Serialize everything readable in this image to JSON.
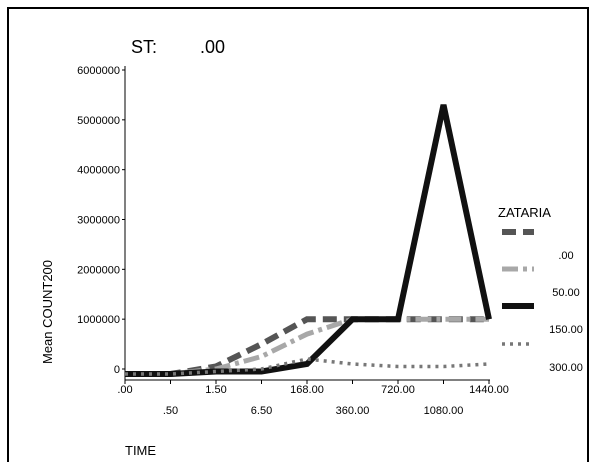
{
  "chart_data": {
    "type": "line",
    "title_label": "ST:",
    "title_value": ".00",
    "xlabel": "TIME",
    "ylabel": "Mean COUNT200",
    "categories": [
      ".00",
      ".50",
      "1.50",
      "6.50",
      "168.00",
      "360.00",
      "720.00",
      "1080.00",
      "1440.00"
    ],
    "yticks": [
      "0",
      "1000000",
      "2000000",
      "3000000",
      "4000000",
      "5000000",
      "6000000"
    ],
    "ylim": [
      0,
      6000000
    ],
    "grid": false,
    "legend": {
      "title": "ZATARIA",
      "placement": "right"
    },
    "series": [
      {
        "name": ".00",
        "color": "#555555",
        "style": "dashed",
        "values": [
          -100000,
          -100000,
          50000,
          500000,
          1000000,
          1000000,
          1000000,
          1000000,
          1000000
        ]
      },
      {
        "name": "50.00",
        "color": "#a8a8a8",
        "style": "dashdot",
        "values": [
          -100000,
          -100000,
          0,
          250000,
          700000,
          1000000,
          1000000,
          1000000,
          1000000
        ]
      },
      {
        "name": "150.00",
        "color": "#111111",
        "style": "solid",
        "values": [
          -100000,
          -100000,
          -50000,
          -50000,
          100000,
          1000000,
          1000000,
          5300000,
          1000000
        ]
      },
      {
        "name": "300.00",
        "color": "#777777",
        "style": "dotted",
        "values": [
          -100000,
          -100000,
          -50000,
          0,
          200000,
          100000,
          50000,
          50000,
          100000
        ]
      }
    ]
  }
}
